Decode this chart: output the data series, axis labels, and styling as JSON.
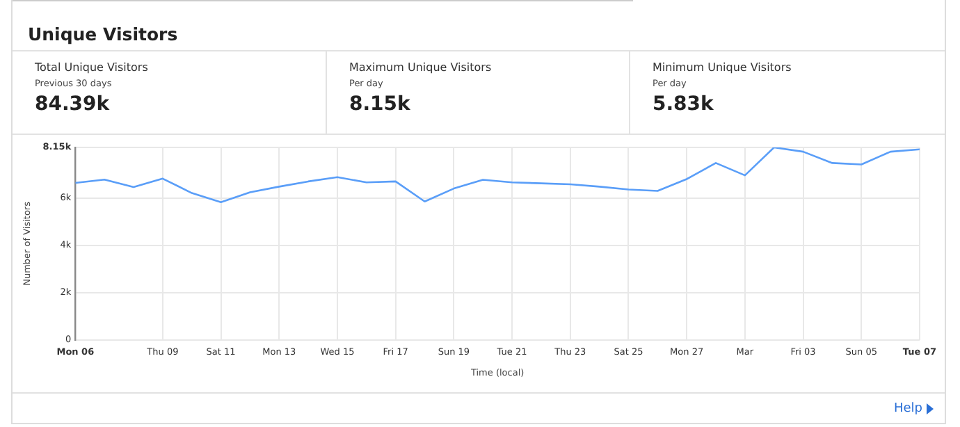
{
  "chart_data": [
    {
      "type": "other",
      "title": "Total Unique Visitors",
      "subtitle": "Previous 30 days",
      "annotations": [
        "84.39k"
      ]
    },
    {
      "type": "other",
      "title": "Maximum Unique Visitors",
      "subtitle": "Per day",
      "annotations": [
        "8.15k"
      ]
    },
    {
      "type": "other",
      "title": "Minimum Unique Visitors",
      "subtitle": "Per day",
      "annotations": [
        "5.83k"
      ]
    },
    {
      "type": "line",
      "title": "Unique Visitors",
      "xlabel": "Time (local)",
      "ylabel": "Number of Visitors",
      "annotations": [
        "Help"
      ],
      "x": [
        "--02-06",
        "--02-07",
        "--02-08",
        "--02-09",
        "--02-10",
        "--02-11",
        "--02-12",
        "--02-13",
        "--02-14",
        "--02-15",
        "--02-16",
        "--02-17",
        "--02-18",
        "--02-19",
        "--02-20",
        "--02-21",
        "--02-22",
        "--02-23",
        "--02-24",
        "--02-25",
        "--02-26",
        "--02-27",
        "--02-28",
        "--03-01",
        "--03-02",
        "--03-03",
        "--03-04",
        "--03-05",
        "--03-06",
        "--03-07"
      ],
      "series": [
        {
          "color": "#5a9ef8",
          "values": [
            6650,
            6790,
            6470,
            6830,
            6220,
            5830,
            6250,
            6490,
            6710,
            6890,
            6670,
            6710,
            5860,
            6410,
            6780,
            6670,
            6630,
            6590,
            6490,
            6370,
            6310,
            6810,
            7490,
            6970,
            8150,
            7970,
            7490,
            7430,
            7970,
            8070
          ]
        }
      ],
      "xlim": [
        "--02-06",
        "--03-07"
      ],
      "xticks": [
        {
          "value": "--02-06",
          "label": "Mon 06"
        },
        {
          "value": "--02-09",
          "label": "Thu 09"
        },
        {
          "value": "--02-11",
          "label": "Sat 11"
        },
        {
          "value": "--02-13",
          "label": "Mon 13"
        },
        {
          "value": "--02-15",
          "label": "Wed 15"
        },
        {
          "value": "--02-17",
          "label": "Fri 17"
        },
        {
          "value": "--02-19",
          "label": "Sun 19"
        },
        {
          "value": "--02-21",
          "label": "Tue 21"
        },
        {
          "value": "--02-23",
          "label": "Thu 23"
        },
        {
          "value": "--02-25",
          "label": "Sat 25"
        },
        {
          "value": "--02-27",
          "label": "Mon 27"
        },
        {
          "value": "--03-01",
          "label": "Mar"
        },
        {
          "value": "--03-03",
          "label": "Fri 03"
        },
        {
          "value": "--03-05",
          "label": "Sun 05"
        },
        {
          "value": "--03-07",
          "label": "Tue 07"
        }
      ],
      "ylim": [
        0,
        8150
      ],
      "yticks": [
        {
          "value": 0,
          "label": "0"
        },
        {
          "value": 2000,
          "label": "2k"
        },
        {
          "value": 4000,
          "label": "4k"
        },
        {
          "value": 6000,
          "label": "6k"
        },
        {
          "value": 8150,
          "label": "8.15k"
        }
      ],
      "grid": true,
      "legend": false,
      "marker": "none",
      "line_style": "solid"
    }
  ]
}
